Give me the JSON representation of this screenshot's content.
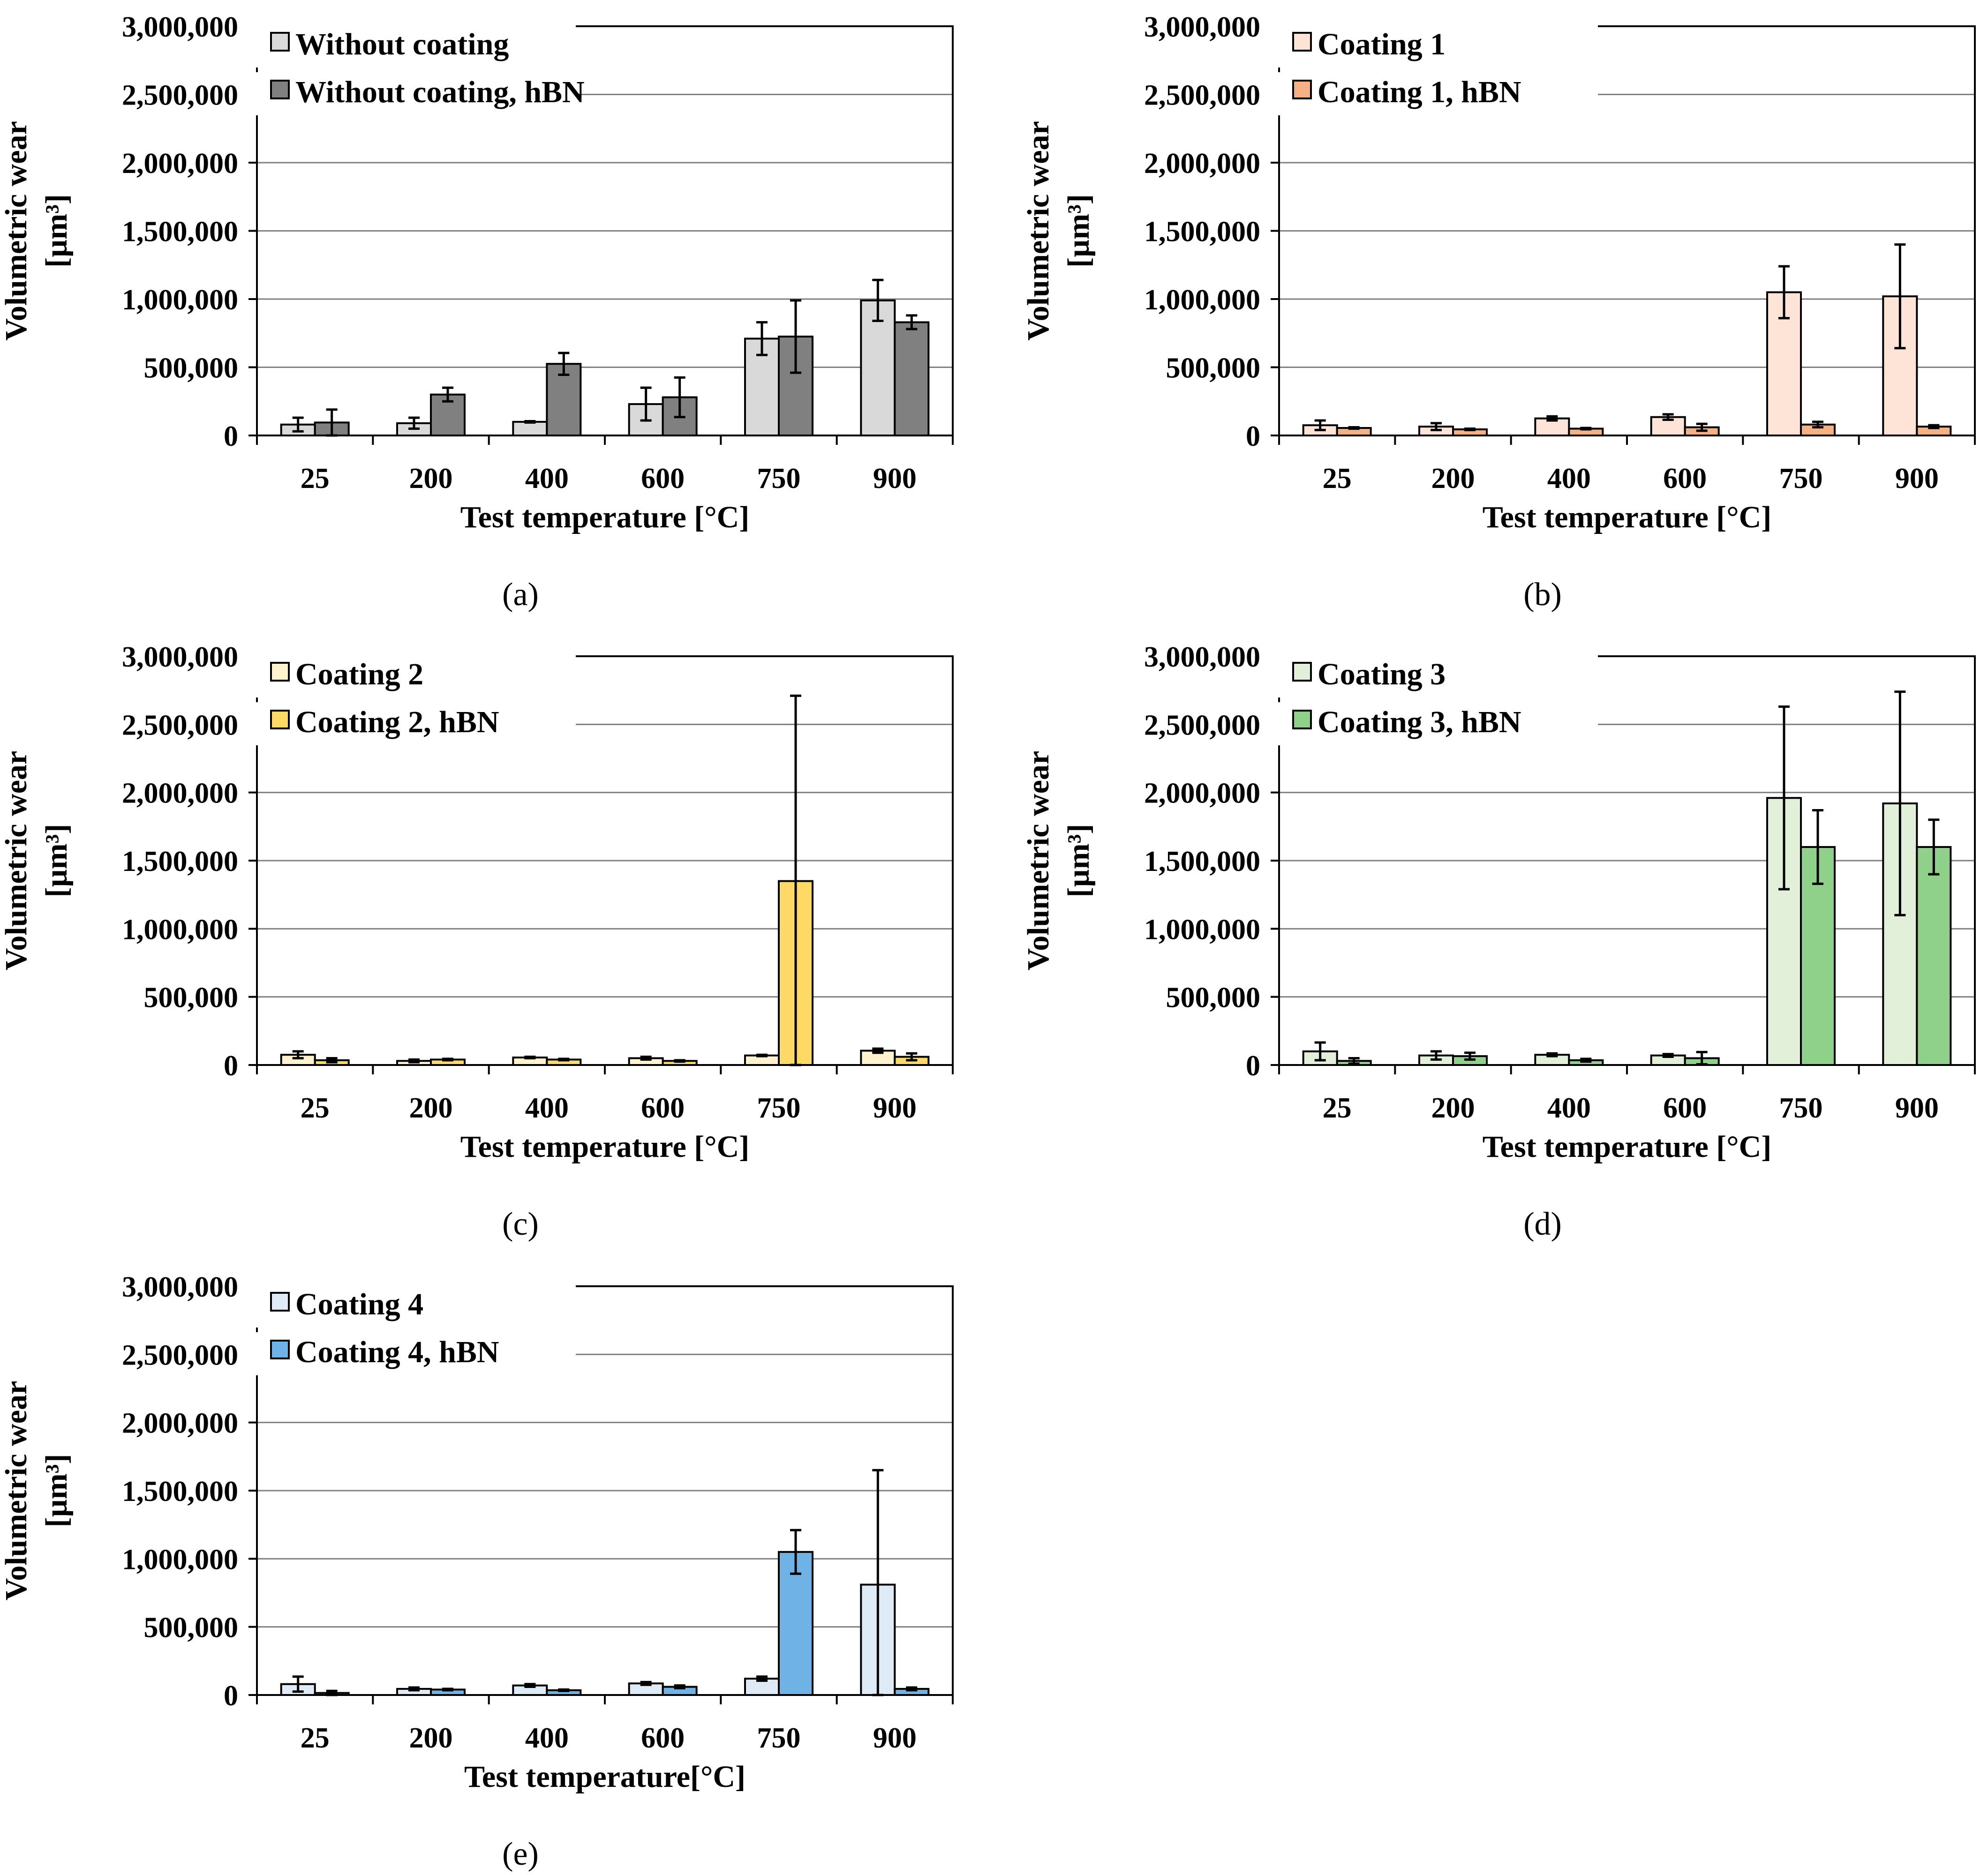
{
  "chart_data": [
    {
      "type": "bar",
      "panel": "(a)",
      "categories": [
        "25",
        "200",
        "400",
        "600",
        "750",
        "900"
      ],
      "xlabel": "Test temperature [°C]",
      "ylabel": "Volumetric wear",
      "yunit": "[µm³]",
      "ylim": [
        0,
        3000000
      ],
      "yticks": [
        "0",
        "500,000",
        "1,000,000",
        "1,500,000",
        "2,000,000",
        "2,500,000",
        "3,000,000"
      ],
      "legend_position": "top-left",
      "series": [
        {
          "name": "Without coating",
          "color": "#d9d9d9",
          "values": [
            80000,
            90000,
            100000,
            230000,
            710000,
            990000
          ],
          "errors": [
            50000,
            40000,
            5000,
            120000,
            120000,
            150000
          ]
        },
        {
          "name": "Without coating, hBN",
          "color": "#808080",
          "values": [
            95000,
            300000,
            525000,
            280000,
            725000,
            830000
          ],
          "errors": [
            95000,
            50000,
            80000,
            145000,
            265000,
            50000
          ]
        }
      ]
    },
    {
      "type": "bar",
      "panel": "(b)",
      "categories": [
        "25",
        "200",
        "400",
        "600",
        "750",
        "900"
      ],
      "xlabel": "Test temperature [°C]",
      "ylabel": "Volumetric wear",
      "yunit": "[µm³]",
      "ylim": [
        0,
        3000000
      ],
      "yticks": [
        "0",
        "500,000",
        "1,000,000",
        "1,500,000",
        "2,000,000",
        "2,500,000",
        "3,000,000"
      ],
      "legend_position": "top-left",
      "series": [
        {
          "name": "Coating 1",
          "color": "#fde4d6",
          "values": [
            75000,
            65000,
            125000,
            135000,
            1050000,
            1020000
          ],
          "errors": [
            35000,
            25000,
            15000,
            20000,
            190000,
            380000
          ]
        },
        {
          "name": "Coating 1, hBN",
          "color": "#f4b183",
          "values": [
            55000,
            45000,
            50000,
            60000,
            80000,
            65000
          ],
          "errors": [
            5000,
            5000,
            5000,
            25000,
            20000,
            10000
          ]
        }
      ]
    },
    {
      "type": "bar",
      "panel": "(c)",
      "categories": [
        "25",
        "200",
        "400",
        "600",
        "750",
        "900"
      ],
      "xlabel": "Test temperature [°C]",
      "ylabel": "Volumetric wear",
      "yunit": "[µm³]",
      "ylim": [
        0,
        3000000
      ],
      "yticks": [
        "0",
        "500,000",
        "1,000,000",
        "1,500,000",
        "2,000,000",
        "2,500,000",
        "3,000,000"
      ],
      "legend_position": "top-left",
      "series": [
        {
          "name": "Coating 2",
          "color": "#fff2cc",
          "values": [
            75000,
            30000,
            55000,
            50000,
            70000,
            105000
          ],
          "errors": [
            25000,
            10000,
            5000,
            10000,
            5000,
            15000
          ]
        },
        {
          "name": "Coating 2, hBN",
          "color": "#ffd966",
          "values": [
            35000,
            40000,
            40000,
            30000,
            1350000,
            60000
          ],
          "errors": [
            15000,
            5000,
            5000,
            5000,
            1360000,
            25000
          ]
        }
      ]
    },
    {
      "type": "bar",
      "panel": "(d)",
      "categories": [
        "25",
        "200",
        "400",
        "600",
        "750",
        "900"
      ],
      "xlabel": "Test temperature [°C]",
      "ylabel": "Volumetric wear",
      "yunit": "[µm³]",
      "ylim": [
        0,
        3000000
      ],
      "yticks": [
        "0",
        "500,000",
        "1,000,000",
        "1,500,000",
        "2,000,000",
        "2,500,000",
        "3,000,000"
      ],
      "legend_position": "top-left",
      "series": [
        {
          "name": "Coating 3",
          "color": "#e2f0d9",
          "values": [
            100000,
            70000,
            75000,
            70000,
            1960000,
            1920000
          ],
          "errors": [
            65000,
            30000,
            10000,
            10000,
            670000,
            820000
          ]
        },
        {
          "name": "Coating 3, hBN",
          "color": "#8fd08a",
          "values": [
            30000,
            65000,
            35000,
            50000,
            1600000,
            1600000
          ],
          "errors": [
            20000,
            25000,
            10000,
            45000,
            270000,
            200000
          ]
        }
      ]
    },
    {
      "type": "bar",
      "panel": "(e)",
      "categories": [
        "25",
        "200",
        "400",
        "600",
        "750",
        "900"
      ],
      "xlabel": "Test temperature[°C]",
      "ylabel": "Volumetric wear",
      "yunit": "[µm³]",
      "ylim": [
        0,
        3000000
      ],
      "yticks": [
        "0",
        "500,000",
        "1,000,000",
        "1,500,000",
        "2,000,000",
        "2,500,000",
        "3,000,000"
      ],
      "legend_position": "top-left",
      "series": [
        {
          "name": "Coating 4",
          "color": "#deebf7",
          "values": [
            80000,
            45000,
            70000,
            85000,
            120000,
            810000
          ],
          "errors": [
            55000,
            10000,
            10000,
            10000,
            15000,
            840000
          ]
        },
        {
          "name": "Coating 4, hBN",
          "color": "#6fb3e6",
          "values": [
            15000,
            40000,
            35000,
            60000,
            1050000,
            45000
          ],
          "errors": [
            15000,
            5000,
            5000,
            10000,
            160000,
            10000
          ]
        }
      ]
    }
  ]
}
